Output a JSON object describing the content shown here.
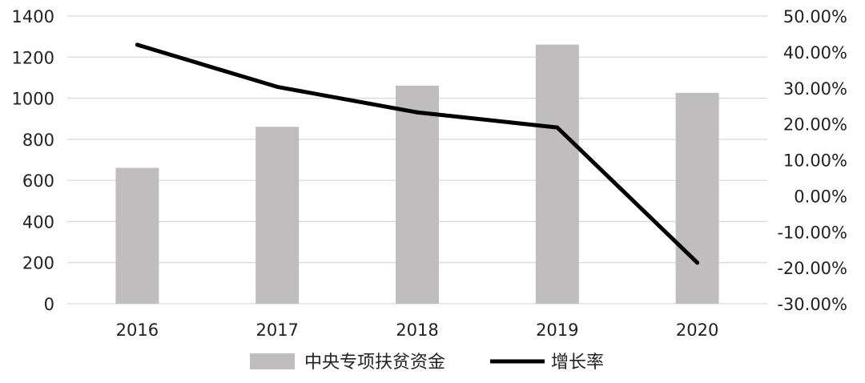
{
  "chart_data": {
    "type": "bar",
    "categories": [
      "2016",
      "2017",
      "2018",
      "2019",
      "2020"
    ],
    "series": [
      {
        "name": "中央专项扶贫资金",
        "type": "bar",
        "axis": "left",
        "values": [
          661,
          861,
          1061,
          1261,
          1026
        ],
        "color": "#bfbdbd"
      },
      {
        "name": "增长率",
        "type": "line",
        "axis": "right",
        "values": [
          0.42,
          0.303,
          0.232,
          0.19,
          -0.186
        ],
        "color": "#000000"
      }
    ],
    "ylim_left": [
      0,
      1400
    ],
    "ylim_right": [
      -0.3,
      0.5
    ],
    "yticks_left": [
      "0",
      "200",
      "400",
      "600",
      "800",
      "1000",
      "1200",
      "1400"
    ],
    "yticks_right": [
      "-30.00%",
      "-20.00%",
      "-10.00%",
      "0.00%",
      "10.00%",
      "20.00%",
      "30.00%",
      "40.00%",
      "50.00%"
    ],
    "grid": true,
    "legend_position": "bottom"
  }
}
